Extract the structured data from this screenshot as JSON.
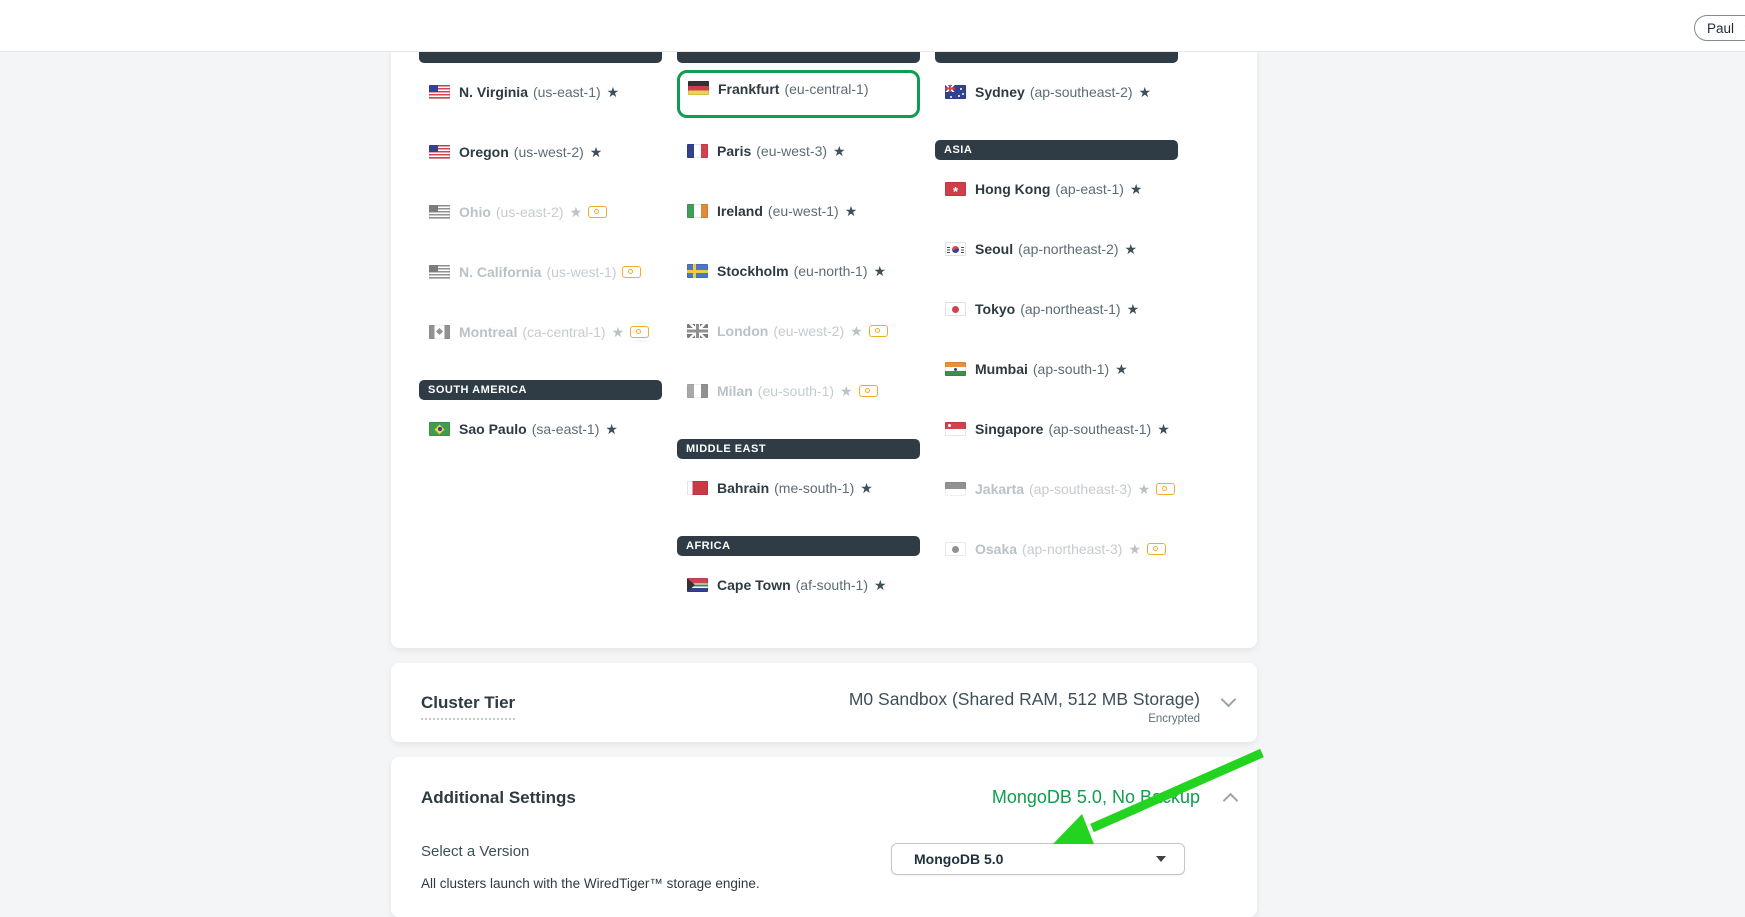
{
  "header": {
    "user_label": "Paul"
  },
  "colors": {
    "green": "#0f9d4f",
    "arrow": "#22d41f",
    "bar": "#2f3b45",
    "slate": "#36454e",
    "disabled": "#b9c2c7",
    "paid": "#f0ad2d"
  },
  "icons": {
    "favorite": "star-icon",
    "paid_tier": "banknote-icon",
    "collapse": "chevron-up-icon",
    "expand": "chevron-down-icon",
    "dropdown": "caret-down-icon"
  },
  "regions_card": {
    "columns": [
      {
        "items": [
          {
            "type": "region",
            "name": "N. Virginia",
            "code": "(us-east-1)",
            "flag": "us",
            "star": true,
            "paid": false,
            "disabled": false
          },
          {
            "type": "region",
            "name": "Oregon",
            "code": "(us-west-2)",
            "flag": "us",
            "star": true,
            "paid": false,
            "disabled": false
          },
          {
            "type": "region",
            "name": "Ohio",
            "code": "(us-east-2)",
            "flag": "us",
            "star": true,
            "paid": true,
            "disabled": true
          },
          {
            "type": "region",
            "name": "N. California",
            "code": "(us-west-1)",
            "flag": "us",
            "star": false,
            "paid": true,
            "disabled": true
          },
          {
            "type": "region",
            "name": "Montreal",
            "code": "(ca-central-1)",
            "flag": "ca",
            "star": true,
            "paid": true,
            "disabled": true
          },
          {
            "type": "header",
            "label": "SOUTH AMERICA"
          },
          {
            "type": "region",
            "name": "Sao Paulo",
            "code": "(sa-east-1)",
            "flag": "br",
            "star": true,
            "paid": false,
            "disabled": false
          }
        ]
      },
      {
        "items": [
          {
            "type": "region",
            "name": "Frankfurt",
            "code": "(eu-central-1)",
            "flag": "de",
            "star": false,
            "paid": false,
            "disabled": false,
            "selected": true
          },
          {
            "type": "region",
            "name": "Paris",
            "code": "(eu-west-3)",
            "flag": "fr",
            "star": true,
            "paid": false,
            "disabled": false
          },
          {
            "type": "region",
            "name": "Ireland",
            "code": "(eu-west-1)",
            "flag": "ie",
            "star": true,
            "paid": false,
            "disabled": false
          },
          {
            "type": "region",
            "name": "Stockholm",
            "code": "(eu-north-1)",
            "flag": "se",
            "star": true,
            "paid": false,
            "disabled": false
          },
          {
            "type": "region",
            "name": "London",
            "code": "(eu-west-2)",
            "flag": "gb",
            "star": true,
            "paid": true,
            "disabled": true
          },
          {
            "type": "region",
            "name": "Milan",
            "code": "(eu-south-1)",
            "flag": "it",
            "star": true,
            "paid": true,
            "disabled": true
          },
          {
            "type": "header",
            "label": "MIDDLE EAST"
          },
          {
            "type": "region",
            "name": "Bahrain",
            "code": "(me-south-1)",
            "flag": "bh",
            "star": true,
            "paid": false,
            "disabled": false
          },
          {
            "type": "header",
            "label": "AFRICA"
          },
          {
            "type": "region",
            "name": "Cape Town",
            "code": "(af-south-1)",
            "flag": "za",
            "star": true,
            "paid": false,
            "disabled": false
          }
        ]
      },
      {
        "items": [
          {
            "type": "region",
            "name": "Sydney",
            "code": "(ap-southeast-2)",
            "flag": "au",
            "star": true,
            "paid": false,
            "disabled": false
          },
          {
            "type": "header",
            "label": "ASIA"
          },
          {
            "type": "region",
            "name": "Hong Kong",
            "code": "(ap-east-1)",
            "flag": "hk",
            "star": true,
            "paid": false,
            "disabled": false
          },
          {
            "type": "region",
            "name": "Seoul",
            "code": "(ap-northeast-2)",
            "flag": "kr",
            "star": true,
            "paid": false,
            "disabled": false
          },
          {
            "type": "region",
            "name": "Tokyo",
            "code": "(ap-northeast-1)",
            "flag": "jp",
            "star": true,
            "paid": false,
            "disabled": false
          },
          {
            "type": "region",
            "name": "Mumbai",
            "code": "(ap-south-1)",
            "flag": "in",
            "star": true,
            "paid": false,
            "disabled": false
          },
          {
            "type": "region",
            "name": "Singapore",
            "code": "(ap-southeast-1)",
            "flag": "sg",
            "star": true,
            "paid": false,
            "disabled": false
          },
          {
            "type": "region",
            "name": "Jakarta",
            "code": "(ap-southeast-3)",
            "flag": "id",
            "star": true,
            "paid": true,
            "disabled": true
          },
          {
            "type": "region",
            "name": "Osaka",
            "code": "(ap-northeast-3)",
            "flag": "jp",
            "star": true,
            "paid": true,
            "disabled": true
          }
        ]
      }
    ]
  },
  "cluster_tier": {
    "title": "Cluster Tier",
    "value": "M0 Sandbox (Shared RAM, 512 MB Storage)",
    "sub_value": "Encrypted"
  },
  "additional_settings": {
    "title": "Additional Settings",
    "summary": "MongoDB 5.0, No Backup",
    "version_label": "Select a Version",
    "version_value": "MongoDB 5.0",
    "footnote": "All clusters launch with the WiredTiger™ storage engine."
  }
}
